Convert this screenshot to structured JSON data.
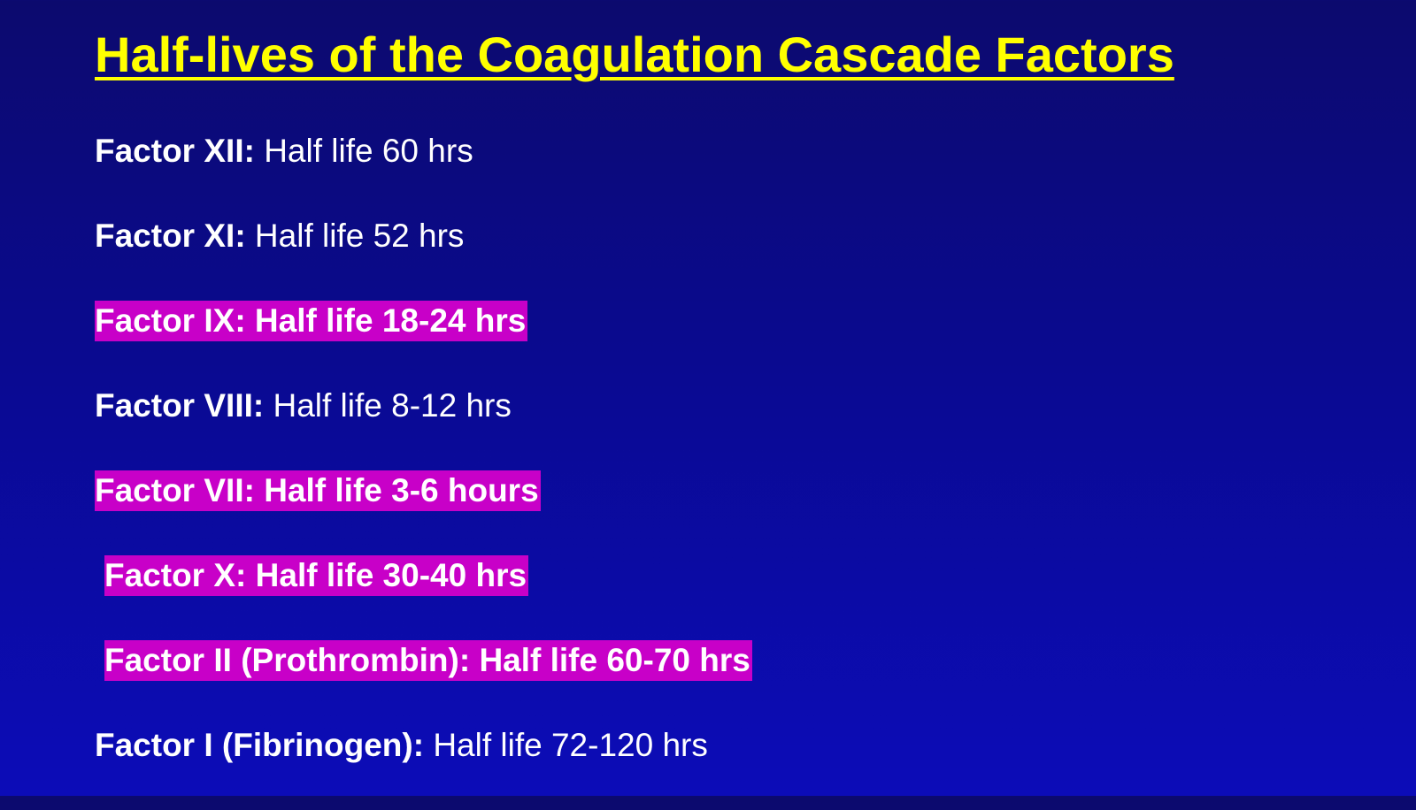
{
  "slide": {
    "title": "Half-lives of the Coagulation Cascade Factors",
    "highlight_color": "#c800c8",
    "title_color": "#ffff00",
    "factors": [
      {
        "name": "Factor XII:",
        "value": "Half life 60 hrs",
        "highlighted": false
      },
      {
        "name": "Factor XI:",
        "value": "Half life 52 hrs",
        "highlighted": false
      },
      {
        "name": "Factor IX:",
        "value": "Half life 18-24 hrs",
        "highlighted": true
      },
      {
        "name": "Factor VIII:",
        "value": "Half life 8-12 hrs",
        "highlighted": false
      },
      {
        "name": "Factor VII:",
        "value": "Half life 3-6 hours",
        "highlighted": true
      },
      {
        "name": "Factor X:",
        "value": "Half life 30-40 hrs",
        "highlighted": true
      },
      {
        "name": "Factor II (Prothrombin):",
        "value": "Half life 60-70 hrs",
        "highlighted": true
      },
      {
        "name": "Factor I (Fibrinogen):",
        "value": "Half life 72-120 hrs",
        "highlighted": false
      }
    ]
  }
}
